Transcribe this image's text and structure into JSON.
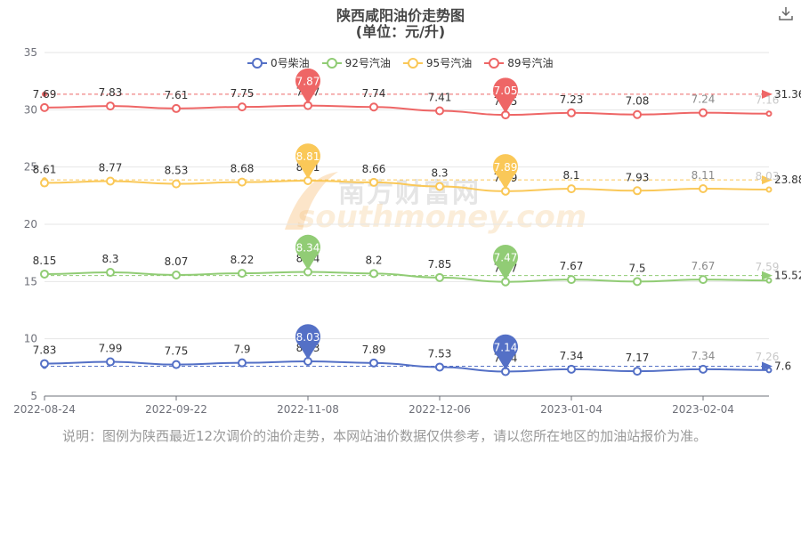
{
  "title": "陕西咸阳油价走势图",
  "subtitle": "(单位：元/升)",
  "note": "说明：图例为陕西最近12次调价的油价走势，本网站油价数据仅供参考，请以您所在地区的加油站报价为准。",
  "watermark": {
    "cn": "南方财富网",
    "en": "southmoney.com"
  },
  "download_icon": "download-icon",
  "chart_data": {
    "type": "line",
    "x_tick_labels": [
      "2022-08-24",
      "2022-09-22",
      "2022-11-08",
      "2022-12-06",
      "2023-01-04",
      "2023-02-04"
    ],
    "x_tick_positions": [
      0,
      2,
      4,
      6,
      8,
      10
    ],
    "ylim": [
      5,
      35
    ],
    "yticks": [
      5,
      10,
      15,
      20,
      25,
      30,
      35
    ],
    "grid": true,
    "legend": "top-center",
    "series": [
      {
        "name": "0号柴油",
        "color": "#5470c6",
        "offset": 0,
        "values": [
          7.83,
          7.99,
          7.75,
          7.9,
          8.03,
          7.89,
          7.53,
          7.14,
          7.34,
          7.17,
          7.34,
          7.26
        ],
        "max": {
          "index": 4,
          "label": "8.03"
        },
        "min": {
          "index": 7,
          "label": "7.14"
        },
        "average": "7.6"
      },
      {
        "name": "92号汽油",
        "color": "#91cc75",
        "offset": 7.5,
        "values": [
          8.15,
          8.3,
          8.07,
          8.22,
          8.34,
          8.2,
          7.85,
          7.47,
          7.67,
          7.5,
          7.67,
          7.59
        ],
        "max": {
          "index": 4,
          "label": "8.34"
        },
        "min": {
          "index": 7,
          "label": "7.47"
        },
        "average": "15.52"
      },
      {
        "name": "95号汽油",
        "color": "#fac858",
        "offset": 15,
        "values": [
          8.61,
          8.77,
          8.53,
          8.68,
          8.81,
          8.66,
          8.3,
          7.89,
          8.1,
          7.93,
          8.11,
          8.03
        ],
        "max": {
          "index": 4,
          "label": "8.81"
        },
        "min": {
          "index": 7,
          "label": "7.89"
        },
        "average": "23.88"
      },
      {
        "name": "89号汽油",
        "color": "#ee6666",
        "offset": 22.5,
        "values": [
          7.69,
          7.83,
          7.61,
          7.75,
          7.87,
          7.74,
          7.41,
          7.05,
          7.23,
          7.08,
          7.24,
          7.16
        ],
        "max": {
          "index": 4,
          "label": "7.87"
        },
        "min": {
          "index": 7,
          "label": "7.05"
        },
        "average": "31.36"
      }
    ]
  }
}
